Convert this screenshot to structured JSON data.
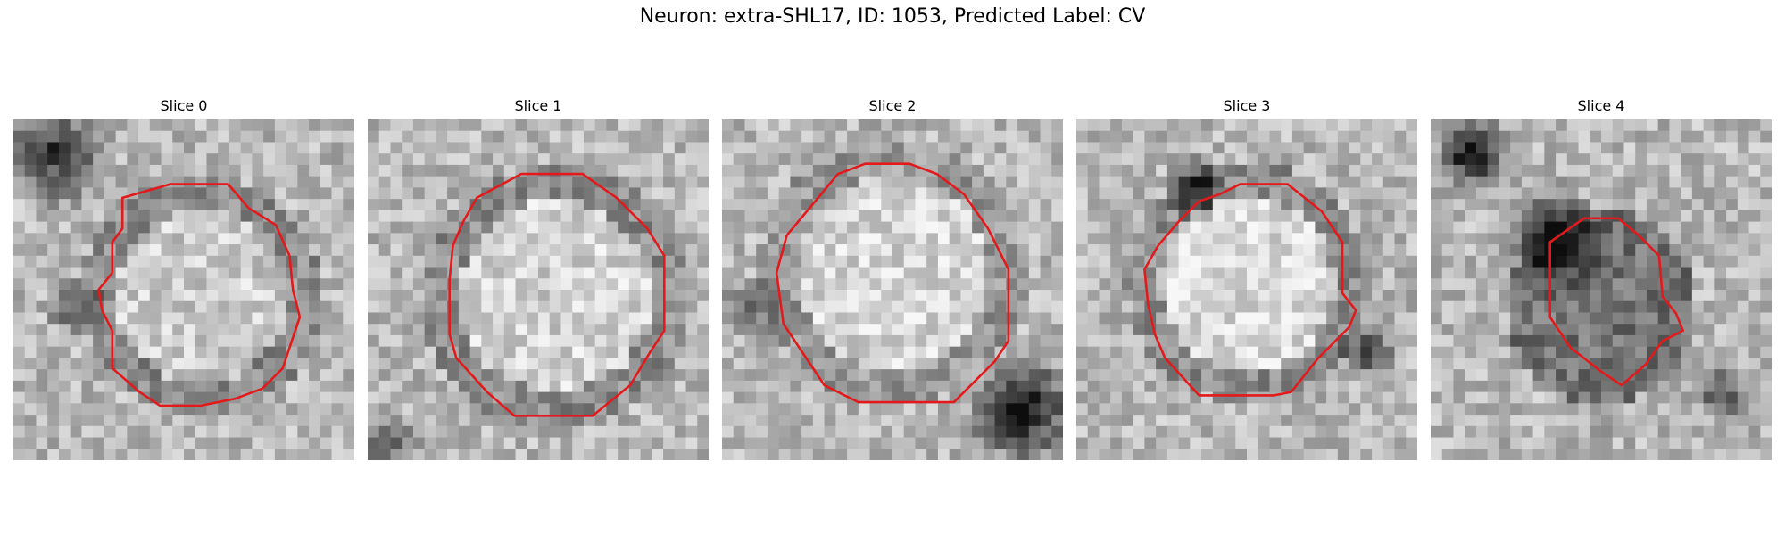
{
  "figure": {
    "title": "Neuron: extra-SHL17, ID: 1053, Predicted Label: CV"
  },
  "panels": [
    {
      "title": "Slice 0"
    },
    {
      "title": "Slice 1"
    },
    {
      "title": "Slice 2"
    },
    {
      "title": "Slice 3"
    },
    {
      "title": "Slice 4"
    }
  ],
  "colors": {
    "contour": "#e31a1c",
    "background": "#ffffff"
  }
}
